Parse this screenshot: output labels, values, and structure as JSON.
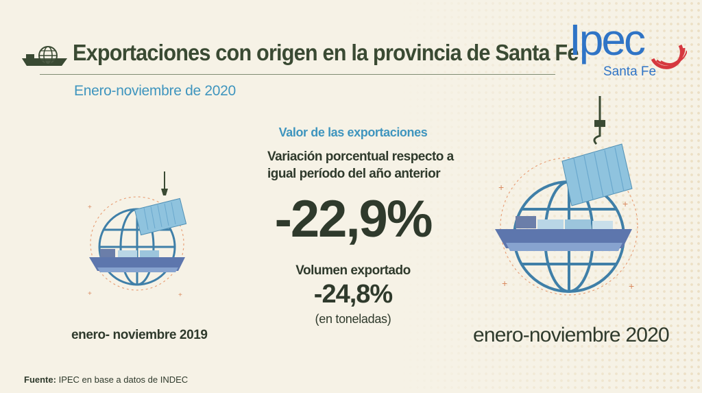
{
  "header": {
    "title": "Exportaciones con origen en la provincia de Santa Fe",
    "subtitle": "Enero-noviembre de 2020"
  },
  "logo": {
    "brand": "Ipec",
    "region": "Santa Fe"
  },
  "indicators": {
    "section_label": "Valor de las exportaciones",
    "variation_line1": "Variación porcentual respecto a",
    "variation_line2": "igual período del año anterior",
    "value_change": "-22,9%",
    "volume_label": "Volumen exportado",
    "volume_change": "-24,8%",
    "volume_unit": "(en toneladas)"
  },
  "periods": {
    "previous": "enero- noviembre 2019",
    "current": "enero-noviembre 2020"
  },
  "footer": {
    "source_label": "Fuente:",
    "source_text": "IPEC en base a datos de INDEC"
  },
  "colors": {
    "background": "#f6f2e6",
    "accent_blue": "#3f95be",
    "dark_text": "#2f3a2c",
    "logo_blue": "#2f74c6",
    "logo_red": "#d6383f",
    "container_blue": "#8fc3de"
  },
  "icons": [
    "ship-globe-icon",
    "container-ship-globe-illustration"
  ]
}
